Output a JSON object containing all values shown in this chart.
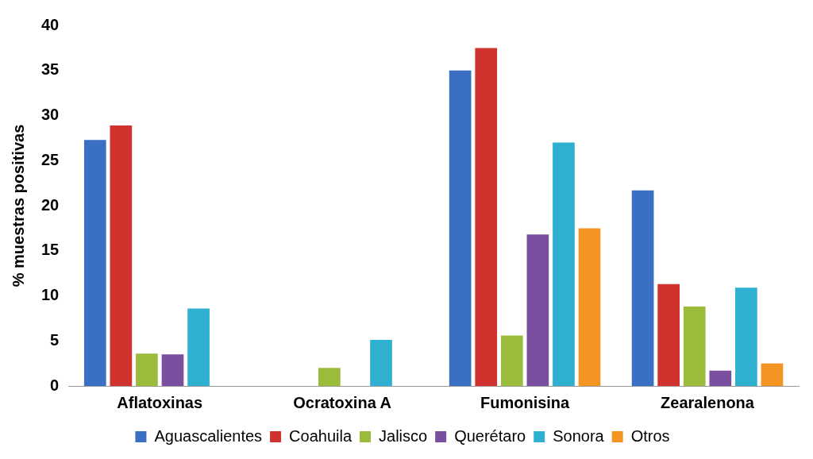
{
  "chart_data": {
    "type": "bar",
    "ylabel": "% muestras positivas",
    "categories": [
      "Aflatoxinas",
      "Ocratoxina A",
      "Fumonisina",
      "Zearalenona"
    ],
    "series": [
      {
        "name": "Aguascalientes",
        "color": "#3a6fc4",
        "values": [
          27.3,
          0,
          35,
          21.7
        ]
      },
      {
        "name": "Coahuila",
        "color": "#d0322d",
        "values": [
          28.9,
          0,
          37.5,
          11.3
        ]
      },
      {
        "name": "Jalisco",
        "color": "#9bbb3b",
        "values": [
          3.6,
          2,
          5.6,
          8.8
        ]
      },
      {
        "name": "Querétaro",
        "color": "#7a4fa0",
        "values": [
          3.5,
          0,
          16.8,
          1.7
        ]
      },
      {
        "name": "Sonora",
        "color": "#2fb0d0",
        "values": [
          8.6,
          5.1,
          27,
          10.9
        ]
      },
      {
        "name": "Otros",
        "color": "#f39423",
        "values": [
          0,
          0,
          17.5,
          2.5
        ]
      }
    ],
    "ylim": [
      0,
      40
    ],
    "yticks": [
      0,
      5,
      10,
      15,
      20,
      25,
      30,
      35,
      40
    ],
    "grid": false,
    "legend": "bottom"
  }
}
